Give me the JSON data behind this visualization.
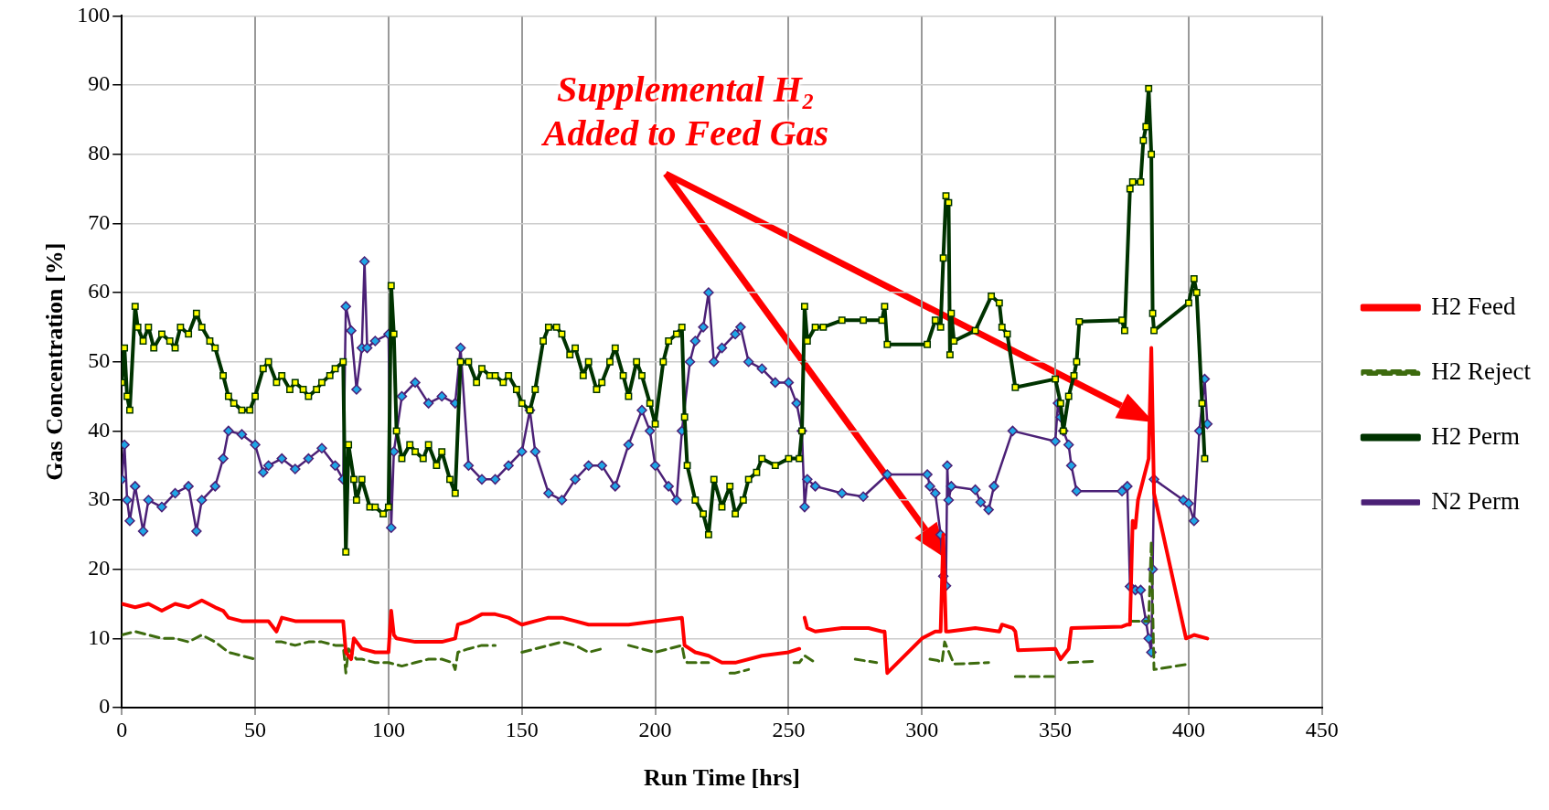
{
  "chart_data": {
    "type": "line",
    "xlabel": "Run Time [hrs]",
    "ylabel": "Gas Concentration [%]",
    "xlim": [
      0,
      450
    ],
    "xticks": [
      0,
      50,
      100,
      150,
      200,
      250,
      300,
      350,
      400,
      450
    ],
    "ylim": [
      0,
      100
    ],
    "yticks": [
      0,
      10,
      20,
      30,
      40,
      50,
      60,
      70,
      80,
      90,
      100
    ],
    "grid": true,
    "legend": "right",
    "annotations": [
      "Supplemental H₂\nAdded to Feed Gas"
    ],
    "series": [
      {
        "name": "H2 Feed",
        "color": "#ff0000",
        "marker": "none",
        "line_style": "solid",
        "x": [
          0,
          5,
          10,
          15,
          20,
          25,
          30,
          35,
          38,
          40,
          45,
          50,
          55,
          58,
          60,
          65,
          70,
          75,
          80,
          83,
          84,
          86,
          87,
          90,
          95,
          100,
          101,
          102,
          103,
          110,
          120,
          125,
          126,
          130,
          135,
          140,
          145,
          150,
          155,
          160,
          165,
          170,
          175,
          180,
          190,
          200,
          210,
          211,
          215,
          220,
          225,
          230,
          240,
          250,
          254,
          255,
          256,
          257,
          260,
          270,
          280,
          285,
          286,
          287,
          300,
          305,
          307,
          308,
          309,
          310,
          320,
          329,
          330,
          334,
          335,
          336,
          350,
          352,
          355,
          356,
          375,
          377,
          378,
          379,
          380,
          381,
          383,
          385,
          386,
          387,
          399,
          402,
          407
        ],
        "values": [
          15,
          14.5,
          15,
          14,
          15,
          14.5,
          15.5,
          14.5,
          14,
          13,
          12.5,
          12.5,
          12.5,
          11,
          13,
          12.5,
          12.5,
          12.5,
          12.5,
          12.5,
          8,
          7,
          10,
          8.5,
          8,
          8,
          14,
          10.5,
          10,
          9.5,
          9.5,
          10,
          12,
          12.5,
          13.5,
          13.5,
          13,
          12,
          12.5,
          13,
          13,
          12.5,
          12,
          12,
          12,
          12.5,
          13,
          9,
          8,
          7.5,
          6.5,
          6.5,
          7.5,
          8,
          8.5,
          null,
          13,
          11.5,
          11,
          11.5,
          11.5,
          11,
          11,
          5,
          10,
          11,
          11,
          25,
          11,
          11,
          11.5,
          11,
          12,
          11.5,
          11,
          8.3,
          8.5,
          7,
          8.5,
          11.5,
          11.7,
          12,
          12,
          27,
          26,
          30,
          33,
          36,
          52,
          31,
          10,
          10.5,
          10
        ]
      },
      {
        "name": "H2 Reject",
        "color": "#3d6b0e",
        "marker": "none",
        "line_style": "dashed",
        "x": [
          0,
          5,
          10,
          15,
          20,
          25,
          30,
          35,
          40,
          45,
          50,
          52,
          58,
          60,
          65,
          70,
          75,
          80,
          83,
          84,
          85,
          88,
          90,
          95,
          100,
          105,
          110,
          115,
          120,
          124,
          125,
          126,
          130,
          135,
          140,
          145,
          150,
          155,
          160,
          165,
          170,
          175,
          180,
          185,
          190,
          195,
          200,
          205,
          210,
          211,
          212,
          215,
          220,
          225,
          228,
          230,
          235,
          238,
          252,
          254,
          256,
          258,
          260,
          262,
          275,
          283,
          285,
          303,
          306,
          307.5,
          308.5,
          312,
          325,
          326,
          335,
          350,
          351,
          355,
          365,
          366,
          378,
          385,
          386,
          387,
          400
        ],
        "values": [
          10.5,
          11,
          10.5,
          10,
          10,
          9.5,
          10.5,
          9.5,
          8,
          7.5,
          7,
          null,
          9.5,
          9.5,
          9,
          9.5,
          9.5,
          9,
          9,
          5,
          8.5,
          7,
          7,
          6.5,
          6.5,
          6,
          6.5,
          7,
          7,
          6.5,
          5.5,
          8,
          8.5,
          9,
          9,
          null,
          8,
          8.5,
          9,
          9.5,
          9,
          8,
          8.5,
          null,
          9,
          8.5,
          8,
          8.5,
          9,
          7,
          6.5,
          6.5,
          6.5,
          null,
          5,
          5,
          5.5,
          null,
          6.5,
          6.5,
          7.5,
          7,
          6.5,
          null,
          7,
          6.5,
          null,
          7,
          6.8,
          6.5,
          9.5,
          6.3,
          6.5,
          null,
          4.5,
          4.5,
          null,
          6.5,
          6.7,
          null,
          12.5,
          12.5,
          24,
          5.5,
          6.3
        ]
      },
      {
        "name": "H2 Perm",
        "color": "#003300",
        "marker": "square",
        "line_style": "solid",
        "x": [
          0,
          1,
          2,
          3,
          5,
          6,
          8,
          10,
          12,
          15,
          18,
          20,
          22,
          25,
          28,
          30,
          33,
          35,
          38,
          40,
          42,
          45,
          48,
          50,
          53,
          55,
          58,
          60,
          63,
          65,
          68,
          70,
          73,
          75,
          78,
          80,
          83,
          84,
          85,
          87,
          88,
          90,
          93,
          95,
          98,
          100,
          101,
          102,
          103,
          105,
          108,
          110,
          113,
          115,
          118,
          120,
          123,
          125,
          127,
          130,
          133,
          135,
          138,
          140,
          143,
          145,
          148,
          150,
          153,
          155,
          158,
          160,
          163,
          165,
          168,
          170,
          173,
          175,
          178,
          180,
          183,
          185,
          188,
          190,
          193,
          195,
          198,
          200,
          203,
          205,
          208,
          210,
          211,
          212,
          215,
          218,
          220,
          222,
          225,
          228,
          230,
          233,
          235,
          238,
          240,
          245,
          250,
          254,
          255,
          256,
          257,
          260,
          263,
          270,
          278,
          285,
          286,
          287,
          302,
          305,
          307,
          308,
          309,
          310,
          310.5,
          311,
          312,
          320,
          326,
          329,
          330,
          332,
          335,
          350,
          352,
          353,
          355,
          357,
          358,
          359,
          375,
          376,
          378,
          379,
          382,
          383,
          384,
          385,
          386,
          386.5,
          387,
          400,
          402,
          403,
          405,
          406
        ],
        "values": [
          47,
          52,
          45,
          43,
          58,
          55,
          53,
          55,
          52,
          54,
          53,
          52,
          55,
          54,
          57,
          55,
          53,
          52,
          48,
          45,
          44,
          43,
          43,
          45,
          49,
          50,
          47,
          48,
          46,
          47,
          46,
          45,
          46,
          47,
          48,
          49,
          50,
          22.5,
          38,
          33,
          30,
          33,
          29,
          29,
          28,
          29,
          61,
          54,
          40,
          36,
          38,
          37,
          36,
          38,
          35,
          37,
          33,
          31,
          50,
          50,
          47,
          49,
          48,
          48,
          47,
          48,
          46,
          44,
          43,
          46,
          53,
          55,
          55,
          54,
          51,
          52,
          48,
          50,
          46,
          47,
          50,
          52,
          48,
          45,
          50,
          48,
          44,
          41,
          50,
          53,
          54,
          55,
          42,
          35,
          30,
          28,
          25,
          33,
          29,
          32,
          28,
          30,
          33,
          34,
          36,
          35,
          36,
          36,
          40,
          58,
          53,
          55,
          55,
          56,
          56,
          56,
          58,
          52.5,
          52.5,
          56,
          55,
          65,
          74,
          73,
          51,
          57,
          53,
          54.5,
          59.5,
          58.5,
          55,
          54,
          46.3,
          47.5,
          44,
          40,
          45,
          48,
          50,
          55.8,
          56,
          54.5,
          75,
          76,
          76,
          82,
          84,
          89.5,
          80,
          57,
          54.5,
          58.5,
          62,
          60,
          44,
          36
        ]
      },
      {
        "name": "N2 Perm",
        "color": "#4b2076",
        "marker": "diamond",
        "line_style": "solid",
        "x": [
          0,
          1,
          2,
          3,
          5,
          8,
          10,
          15,
          20,
          25,
          28,
          30,
          35,
          38,
          40,
          45,
          50,
          53,
          55,
          60,
          65,
          70,
          75,
          80,
          83,
          84,
          86,
          88,
          90,
          91,
          92,
          95,
          100,
          101,
          102,
          105,
          110,
          115,
          120,
          125,
          127,
          130,
          135,
          140,
          145,
          150,
          153,
          155,
          160,
          165,
          170,
          175,
          180,
          185,
          190,
          195,
          198,
          200,
          205,
          208,
          210,
          213,
          215,
          218,
          220,
          222,
          225,
          230,
          232,
          235,
          240,
          245,
          250,
          253,
          255,
          256,
          257,
          260,
          270,
          278,
          287,
          302,
          303,
          305,
          307,
          308,
          309,
          309.5,
          310,
          311,
          320,
          322,
          325,
          327,
          334,
          350,
          351,
          352,
          353,
          355,
          356,
          358,
          375,
          377,
          378,
          380,
          382,
          384,
          385,
          386,
          386.5,
          387,
          398,
          400,
          402,
          404,
          406,
          407
        ],
        "values": [
          33,
          38,
          30,
          27,
          32,
          25.5,
          30,
          29,
          31,
          32,
          25.5,
          30,
          32,
          36,
          40,
          39.5,
          38,
          34,
          35,
          36,
          34.5,
          36,
          37.5,
          35,
          33,
          58,
          54.5,
          46,
          52,
          64.5,
          52,
          53,
          54,
          26,
          37,
          45,
          47,
          44,
          45,
          44,
          52,
          35,
          33,
          33,
          35,
          37,
          43,
          37,
          31,
          30,
          33,
          35,
          35,
          32,
          38,
          43,
          40,
          35,
          32,
          30,
          40,
          50,
          53,
          55,
          60,
          50,
          52,
          54,
          55,
          50,
          49,
          47,
          47,
          44,
          40,
          29,
          33,
          32,
          31,
          30.5,
          33.7,
          33.7,
          32,
          31,
          25,
          19,
          17.6,
          35,
          30,
          32,
          31.5,
          29.7,
          28.6,
          32,
          40,
          38.5,
          44,
          42,
          40,
          38,
          35,
          31.3,
          31.3,
          32,
          17.5,
          17,
          17,
          12.5,
          10,
          8,
          20,
          33,
          30,
          29.5,
          27,
          40,
          47.5,
          41
        ]
      }
    ]
  }
}
